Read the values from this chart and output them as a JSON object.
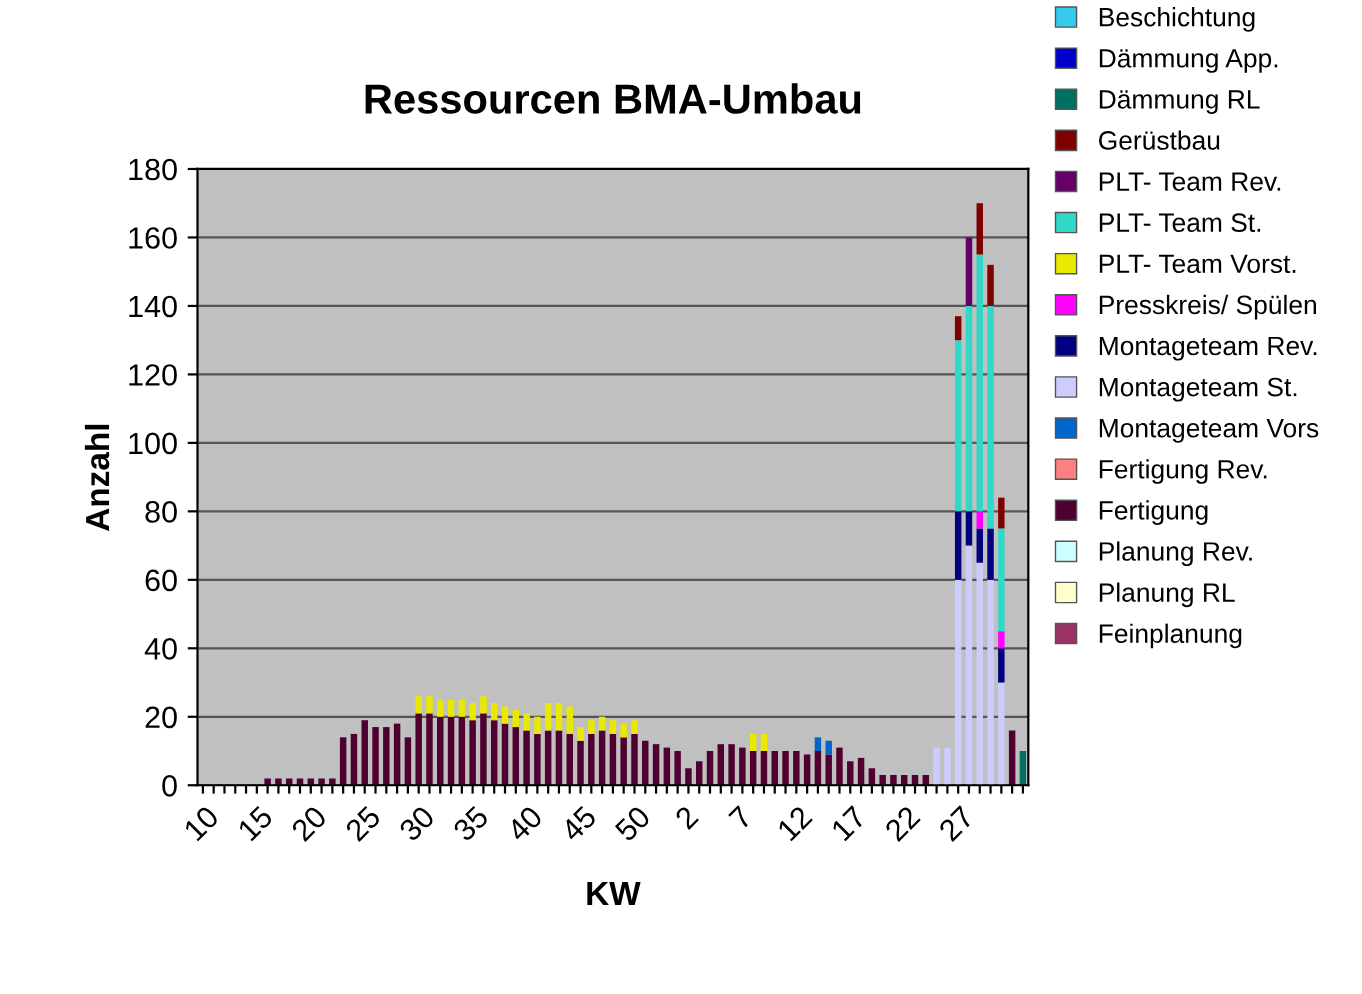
{
  "chart_data": {
    "type": "bar",
    "stacked": true,
    "title": "Ressourcen BMA-Umbau",
    "xlabel": "KW",
    "ylabel": "Anzahl",
    "categories": [
      "10",
      null,
      null,
      null,
      null,
      "15",
      null,
      null,
      null,
      null,
      "20",
      null,
      null,
      null,
      null,
      "25",
      null,
      null,
      null,
      null,
      "30",
      null,
      null,
      null,
      null,
      "35",
      null,
      null,
      null,
      null,
      "40",
      null,
      null,
      null,
      null,
      "45",
      null,
      null,
      null,
      null,
      "50",
      null,
      null,
      null,
      null,
      "2",
      null,
      null,
      null,
      null,
      "7",
      null,
      null,
      null,
      null,
      "12",
      null,
      null,
      null,
      null,
      "17",
      null,
      null,
      null,
      null,
      "22",
      null,
      null,
      null,
      null,
      "27",
      null,
      null,
      null,
      null,
      null,
      null
    ],
    "ylim": [
      0,
      180
    ],
    "yticks": [
      0,
      20,
      40,
      60,
      80,
      100,
      120,
      140,
      160,
      180
    ],
    "grid": "y",
    "legend": "right",
    "series": [
      {
        "name": "Feinplanung",
        "color": "#993366",
        "values": [
          0,
          0,
          0,
          0,
          0,
          0,
          0,
          0,
          0,
          0,
          0,
          0,
          0,
          0,
          0,
          0,
          0,
          0,
          0,
          0,
          0,
          0,
          0,
          0,
          0,
          0,
          0,
          0,
          0,
          0,
          0,
          0,
          0,
          0,
          0,
          0,
          0,
          0,
          0,
          0,
          0,
          0,
          0,
          0,
          0,
          0,
          0,
          0,
          0,
          0,
          0,
          0,
          0,
          0,
          0,
          0,
          0,
          0,
          0,
          0,
          0,
          0,
          0,
          0,
          0,
          0,
          0,
          0,
          0,
          0,
          0,
          0,
          0,
          0,
          0,
          0,
          0
        ]
      },
      {
        "name": "Planung RL",
        "color": "#ffffcc",
        "values": [
          0,
          0,
          0,
          0,
          0,
          0,
          0,
          0,
          0,
          0,
          0,
          0,
          0,
          0,
          0,
          0,
          0,
          0,
          0,
          0,
          0,
          0,
          0,
          0,
          0,
          0,
          0,
          0,
          0,
          0,
          0,
          0,
          0,
          0,
          0,
          0,
          0,
          0,
          0,
          0,
          0,
          0,
          0,
          0,
          0,
          0,
          0,
          0,
          0,
          0,
          0,
          0,
          0,
          0,
          0,
          0,
          0,
          0,
          0,
          0,
          0,
          0,
          0,
          0,
          0,
          0,
          0,
          0,
          0,
          0,
          0,
          0,
          0,
          0,
          0,
          0,
          0
        ]
      },
      {
        "name": "Planung Rev.",
        "color": "#ccffff",
        "values": [
          0,
          0,
          0,
          0,
          0,
          0,
          0,
          0,
          0,
          0,
          0,
          0,
          0,
          0,
          0,
          0,
          0,
          0,
          0,
          0,
          0,
          0,
          0,
          0,
          0,
          0,
          0,
          0,
          0,
          0,
          0,
          0,
          0,
          0,
          0,
          0,
          0,
          0,
          0,
          0,
          0,
          0,
          0,
          0,
          0,
          0,
          0,
          0,
          0,
          0,
          0,
          0,
          0,
          0,
          0,
          0,
          0,
          0,
          0,
          0,
          0,
          0,
          0,
          0,
          0,
          0,
          0,
          0,
          0,
          0,
          0,
          0,
          0,
          0,
          0,
          0,
          0
        ]
      },
      {
        "name": "Fertigung",
        "color": "#500030",
        "values": [
          0,
          0,
          0,
          0,
          0,
          0,
          2,
          2,
          2,
          2,
          2,
          2,
          2,
          14,
          15,
          19,
          17,
          17,
          18,
          14,
          21,
          21,
          20,
          20,
          20,
          19,
          21,
          19,
          18,
          17,
          16,
          15,
          16,
          16,
          15,
          13,
          15,
          16,
          15,
          14,
          15,
          13,
          12,
          11,
          10,
          5,
          7,
          10,
          12,
          12,
          11,
          10,
          10,
          10,
          10,
          10,
          9,
          10,
          9,
          11,
          7,
          8,
          5,
          3,
          3,
          3,
          3,
          3,
          0,
          0,
          0,
          0,
          0,
          0,
          0,
          16,
          0
        ]
      },
      {
        "name": "Fertigung Rev.",
        "color": "#ff8080",
        "values": [
          0,
          0,
          0,
          0,
          0,
          0,
          0,
          0,
          0,
          0,
          0,
          0,
          0,
          0,
          0,
          0,
          0,
          0,
          0,
          0,
          0,
          0,
          0,
          0,
          0,
          0,
          0,
          0,
          0,
          0,
          0,
          0,
          0,
          0,
          0,
          0,
          0,
          0,
          0,
          0,
          0,
          0,
          0,
          0,
          0,
          0,
          0,
          0,
          0,
          0,
          0,
          0,
          0,
          0,
          0,
          0,
          0,
          0,
          0,
          0,
          0,
          0,
          0,
          0,
          0,
          0,
          0,
          0,
          0,
          0,
          0,
          0,
          0,
          0,
          0,
          0,
          0
        ]
      },
      {
        "name": "Montageteam Vors",
        "color": "#0066cc",
        "values": [
          0,
          0,
          0,
          0,
          0,
          0,
          0,
          0,
          0,
          0,
          0,
          0,
          0,
          0,
          0,
          0,
          0,
          0,
          0,
          0,
          0,
          0,
          0,
          0,
          0,
          0,
          0,
          0,
          0,
          0,
          0,
          0,
          0,
          0,
          0,
          0,
          0,
          0,
          0,
          0,
          0,
          0,
          0,
          0,
          0,
          0,
          0,
          0,
          0,
          0,
          0,
          0,
          0,
          0,
          0,
          0,
          0,
          4,
          4,
          0,
          0,
          0,
          0,
          0,
          0,
          0,
          0,
          0,
          0,
          0,
          0,
          0,
          0,
          0,
          0,
          0,
          0
        ]
      },
      {
        "name": "Montageteam St.",
        "color": "#ccccff",
        "values": [
          0,
          0,
          0,
          0,
          0,
          0,
          0,
          0,
          0,
          0,
          0,
          0,
          0,
          0,
          0,
          0,
          0,
          0,
          0,
          0,
          0,
          0,
          0,
          0,
          0,
          0,
          0,
          0,
          0,
          0,
          0,
          0,
          0,
          0,
          0,
          0,
          0,
          0,
          0,
          0,
          0,
          0,
          0,
          0,
          0,
          0,
          0,
          0,
          0,
          0,
          0,
          0,
          0,
          0,
          0,
          0,
          0,
          0,
          0,
          0,
          0,
          0,
          0,
          0,
          0,
          0,
          0,
          0,
          11,
          11,
          60,
          70,
          65,
          60,
          30,
          0,
          0
        ]
      },
      {
        "name": "Montageteam Rev.",
        "color": "#000080",
        "values": [
          0,
          0,
          0,
          0,
          0,
          0,
          0,
          0,
          0,
          0,
          0,
          0,
          0,
          0,
          0,
          0,
          0,
          0,
          0,
          0,
          0,
          0,
          0,
          0,
          0,
          0,
          0,
          0,
          0,
          0,
          0,
          0,
          0,
          0,
          0,
          0,
          0,
          0,
          0,
          0,
          0,
          0,
          0,
          0,
          0,
          0,
          0,
          0,
          0,
          0,
          0,
          0,
          0,
          0,
          0,
          0,
          0,
          0,
          0,
          0,
          0,
          0,
          0,
          0,
          0,
          0,
          0,
          0,
          0,
          0,
          20,
          10,
          10,
          15,
          10,
          0,
          0
        ]
      },
      {
        "name": "Presskreis/ Spülen",
        "color": "#ff00ff",
        "values": [
          0,
          0,
          0,
          0,
          0,
          0,
          0,
          0,
          0,
          0,
          0,
          0,
          0,
          0,
          0,
          0,
          0,
          0,
          0,
          0,
          0,
          0,
          0,
          0,
          0,
          0,
          0,
          0,
          0,
          0,
          0,
          0,
          0,
          0,
          0,
          0,
          0,
          0,
          0,
          0,
          0,
          0,
          0,
          0,
          0,
          0,
          0,
          0,
          0,
          0,
          0,
          0,
          0,
          0,
          0,
          0,
          0,
          0,
          0,
          0,
          0,
          0,
          0,
          0,
          0,
          0,
          0,
          0,
          0,
          0,
          0,
          0,
          5,
          0,
          5,
          0,
          0
        ]
      },
      {
        "name": "PLT- Team Vorst.",
        "color": "#e8e800",
        "values": [
          0,
          0,
          0,
          0,
          0,
          0,
          0,
          0,
          0,
          0,
          0,
          0,
          0,
          0,
          0,
          0,
          0,
          0,
          0,
          0,
          5,
          5,
          5,
          5,
          5,
          5,
          5,
          5,
          5,
          5,
          5,
          5,
          8,
          8,
          8,
          4,
          4,
          4,
          4,
          4,
          4,
          0,
          0,
          0,
          0,
          0,
          0,
          0,
          0,
          0,
          0,
          5,
          5,
          0,
          0,
          0,
          0,
          0,
          0,
          0,
          0,
          0,
          0,
          0,
          0,
          0,
          0,
          0,
          0,
          0,
          0,
          0,
          0,
          0,
          0,
          0,
          0
        ]
      },
      {
        "name": "PLT- Team St.",
        "color": "#30d8c8",
        "values": [
          0,
          0,
          0,
          0,
          0,
          0,
          0,
          0,
          0,
          0,
          0,
          0,
          0,
          0,
          0,
          0,
          0,
          0,
          0,
          0,
          0,
          0,
          0,
          0,
          0,
          0,
          0,
          0,
          0,
          0,
          0,
          0,
          0,
          0,
          0,
          0,
          0,
          0,
          0,
          0,
          0,
          0,
          0,
          0,
          0,
          0,
          0,
          0,
          0,
          0,
          0,
          0,
          0,
          0,
          0,
          0,
          0,
          0,
          0,
          0,
          0,
          0,
          0,
          0,
          0,
          0,
          0,
          0,
          0,
          0,
          50,
          60,
          75,
          65,
          30,
          0,
          0
        ]
      },
      {
        "name": "PLT- Team Rev.",
        "color": "#660066",
        "values": [
          0,
          0,
          0,
          0,
          0,
          0,
          0,
          0,
          0,
          0,
          0,
          0,
          0,
          0,
          0,
          0,
          0,
          0,
          0,
          0,
          0,
          0,
          0,
          0,
          0,
          0,
          0,
          0,
          0,
          0,
          0,
          0,
          0,
          0,
          0,
          0,
          0,
          0,
          0,
          0,
          0,
          0,
          0,
          0,
          0,
          0,
          0,
          0,
          0,
          0,
          0,
          0,
          0,
          0,
          0,
          0,
          0,
          0,
          0,
          0,
          0,
          0,
          0,
          0,
          0,
          0,
          0,
          0,
          0,
          0,
          0,
          20,
          0,
          0,
          0,
          0,
          0
        ]
      },
      {
        "name": "Gerüstbau",
        "color": "#800000",
        "values": [
          0,
          0,
          0,
          0,
          0,
          0,
          0,
          0,
          0,
          0,
          0,
          0,
          0,
          0,
          0,
          0,
          0,
          0,
          0,
          0,
          0,
          0,
          0,
          0,
          0,
          0,
          0,
          0,
          0,
          0,
          0,
          0,
          0,
          0,
          0,
          0,
          0,
          0,
          0,
          0,
          0,
          0,
          0,
          0,
          0,
          0,
          0,
          0,
          0,
          0,
          0,
          0,
          0,
          0,
          0,
          0,
          0,
          0,
          0,
          0,
          0,
          0,
          0,
          0,
          0,
          0,
          0,
          0,
          0,
          0,
          7,
          0,
          15,
          12,
          9,
          0,
          0
        ]
      },
      {
        "name": "Dämmung RL",
        "color": "#007060",
        "values": [
          0,
          0,
          0,
          0,
          0,
          0,
          0,
          0,
          0,
          0,
          0,
          0,
          0,
          0,
          0,
          0,
          0,
          0,
          0,
          0,
          0,
          0,
          0,
          0,
          0,
          0,
          0,
          0,
          0,
          0,
          0,
          0,
          0,
          0,
          0,
          0,
          0,
          0,
          0,
          0,
          0,
          0,
          0,
          0,
          0,
          0,
          0,
          0,
          0,
          0,
          0,
          0,
          0,
          0,
          0,
          0,
          0,
          0,
          0,
          0,
          0,
          0,
          0,
          0,
          0,
          0,
          0,
          0,
          0,
          0,
          0,
          0,
          0,
          0,
          0,
          0,
          10
        ]
      },
      {
        "name": "Dämmung App.",
        "color": "#0000cc",
        "values": [
          0,
          0,
          0,
          0,
          0,
          0,
          0,
          0,
          0,
          0,
          0,
          0,
          0,
          0,
          0,
          0,
          0,
          0,
          0,
          0,
          0,
          0,
          0,
          0,
          0,
          0,
          0,
          0,
          0,
          0,
          0,
          0,
          0,
          0,
          0,
          0,
          0,
          0,
          0,
          0,
          0,
          0,
          0,
          0,
          0,
          0,
          0,
          0,
          0,
          0,
          0,
          0,
          0,
          0,
          0,
          0,
          0,
          0,
          0,
          0,
          0,
          0,
          0,
          0,
          0,
          0,
          0,
          0,
          0,
          0,
          0,
          0,
          0,
          0,
          0,
          0,
          0
        ]
      },
      {
        "name": "Beschichtung",
        "color": "#33ccee",
        "values": [
          0,
          0,
          0,
          0,
          0,
          0,
          0,
          0,
          0,
          0,
          0,
          0,
          0,
          0,
          0,
          0,
          0,
          0,
          0,
          0,
          0,
          0,
          0,
          0,
          0,
          0,
          0,
          0,
          0,
          0,
          0,
          0,
          0,
          0,
          0,
          0,
          0,
          0,
          0,
          0,
          0,
          0,
          0,
          0,
          0,
          0,
          0,
          0,
          0,
          0,
          0,
          0,
          0,
          0,
          0,
          0,
          0,
          0,
          0,
          0,
          0,
          0,
          0,
          0,
          0,
          0,
          0,
          0,
          0,
          0,
          0,
          0,
          0,
          0,
          0,
          0,
          0
        ]
      }
    ]
  }
}
